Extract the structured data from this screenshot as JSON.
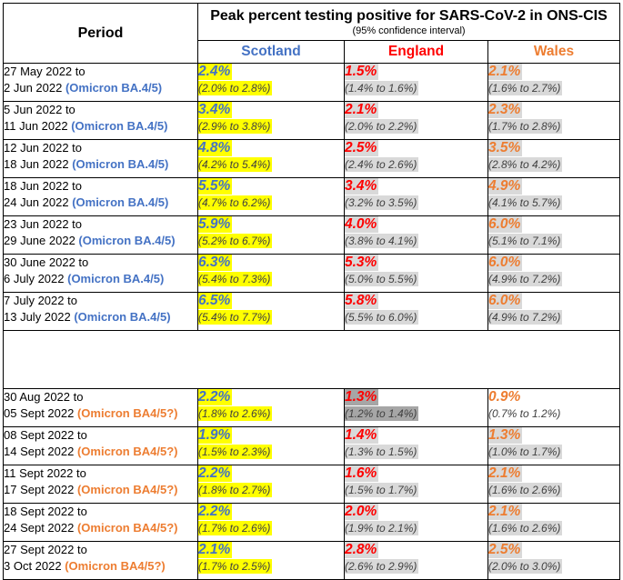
{
  "header": {
    "period_label": "Period",
    "title": "Peak percent testing positive for SARS-CoV-2 in ONS-CIS",
    "subtitle": "(95% confidence interval)",
    "regions": [
      "Scotland",
      "England",
      "Wales"
    ]
  },
  "rows_a": [
    {
      "l1": "27 May 2022 to",
      "l2": "2 Jun 2022 ",
      "variant": "(Omicron BA.4/5)",
      "scot_v": "2.4%",
      "scot_ci": "(2.0% to 2.8%)",
      "eng_v": "1.5%",
      "eng_ci": "(1.4% to 1.6%)",
      "wal_v": "2.1%",
      "wal_ci": "(1.6% to 2.7%)"
    },
    {
      "l1": "5 Jun 2022 to",
      "l2": "11 Jun 2022 ",
      "variant": "(Omicron BA.4/5)",
      "scot_v": "3.4%",
      "scot_ci": "(2.9% to 3.8%)",
      "eng_v": "2.1%",
      "eng_ci": "(2.0% to 2.2%)",
      "wal_v": "2.3%",
      "wal_ci": "(1.7% to 2.8%)"
    },
    {
      "l1": "12 Jun 2022 to",
      "l2": "18 Jun 2022 ",
      "variant": "(Omicron BA.4/5)",
      "scot_v": "4.8%",
      "scot_ci": "(4.2% to 5.4%)",
      "eng_v": "2.5%",
      "eng_ci": "(2.4% to 2.6%)",
      "wal_v": "3.5%",
      "wal_ci": "(2.8% to 4.2%)"
    },
    {
      "l1": "18 Jun 2022 to",
      "l2": "24 Jun 2022 ",
      "variant": "(Omicron BA.4/5)",
      "scot_v": "5.5%",
      "scot_ci": "(4.7% to 6.2%)",
      "eng_v": "3.4%",
      "eng_ci": "(3.2% to 3.5%)",
      "wal_v": "4.9%",
      "wal_ci": "(4.1% to 5.7%)"
    },
    {
      "l1": "23 Jun 2022 to",
      "l2": "29 June 2022 ",
      "variant": "(Omicron BA.4/5)",
      "scot_v": "5.9%",
      "scot_ci": "(5.2% to 6.7%)",
      "eng_v": "4.0%",
      "eng_ci": "(3.8% to 4.1%)",
      "wal_v": "6.0%",
      "wal_ci": "(5.1% to 7.1%)"
    },
    {
      "l1": "30 June 2022 to",
      "l2": "6 July 2022 ",
      "variant": "(Omicron BA.4/5)",
      "scot_v": "6.3%",
      "scot_ci": "(5.4% to 7.3%)",
      "eng_v": "5.3%",
      "eng_ci": "(5.0% to 5.5%)",
      "wal_v": "6.0%",
      "wal_ci": "(4.9% to 7.2%)"
    },
    {
      "l1": "7 July 2022 to",
      "l2": "13 July 2022 ",
      "variant": "(Omicron BA.4/5)",
      "scot_v": "6.5%",
      "scot_ci": "(5.4% to 7.7%)",
      "eng_v": "5.8%",
      "eng_ci": "(5.5% to 6.0%)",
      "wal_v": "6.0%",
      "wal_ci": "(4.9% to 7.2%)"
    }
  ],
  "rows_b": [
    {
      "l1": "30 Aug 2022 to",
      "l2": "05 Sept 2022 ",
      "variant": "(Omicron BA4/5?)",
      "scot_v": "2.2%",
      "scot_ci": "(1.8% to 2.6%)",
      "eng_v": "1.3%",
      "eng_ci": "(1.2% to 1.4%)",
      "wal_v": "0.9%",
      "wal_ci": "(0.7% to 1.2%)"
    },
    {
      "l1": "08 Sept 2022 to",
      "l2": "14 Sept 2022 ",
      "variant": "(Omicron BA4/5?)",
      "scot_v": "1.9%",
      "scot_ci": "(1.5% to 2.3%)",
      "eng_v": "1.4%",
      "eng_ci": "(1.3% to 1.5%)",
      "wal_v": "1.3%",
      "wal_ci": "(1.0% to 1.7%)"
    },
    {
      "l1": "11 Sept 2022 to",
      "l2": "17 Sept 2022 ",
      "variant": "(Omicron BA4/5?)",
      "scot_v": "2.2%",
      "scot_ci": "(1.8% to 2.7%)",
      "eng_v": "1.6%",
      "eng_ci": "(1.5% to 1.7%)",
      "wal_v": "2.1%",
      "wal_ci": "(1.6% to 2.6%)"
    },
    {
      "l1": "18 Sept 2022 to",
      "l2": "24 Sept 2022 ",
      "variant": "(Omicron BA4/5?)",
      "scot_v": "2.2%",
      "scot_ci": "(1.7% to 2.6%)",
      "eng_v": "2.0%",
      "eng_ci": "(1.9% to 2.1%)",
      "wal_v": "2.1%",
      "wal_ci": "(1.6% to 2.6%)"
    },
    {
      "l1": "27 Sept 2022 to",
      "l2": "3 Oct   2022 ",
      "variant": "(Omicron BA4/5?)",
      "scot_v": "2.1%",
      "scot_ci": "(1.7% to 2.5%)",
      "eng_v": "2.8%",
      "eng_ci": "(2.6% to 2.9%)",
      "wal_v": "2.5%",
      "wal_ci": "(2.0% to 3.0%)"
    }
  ]
}
